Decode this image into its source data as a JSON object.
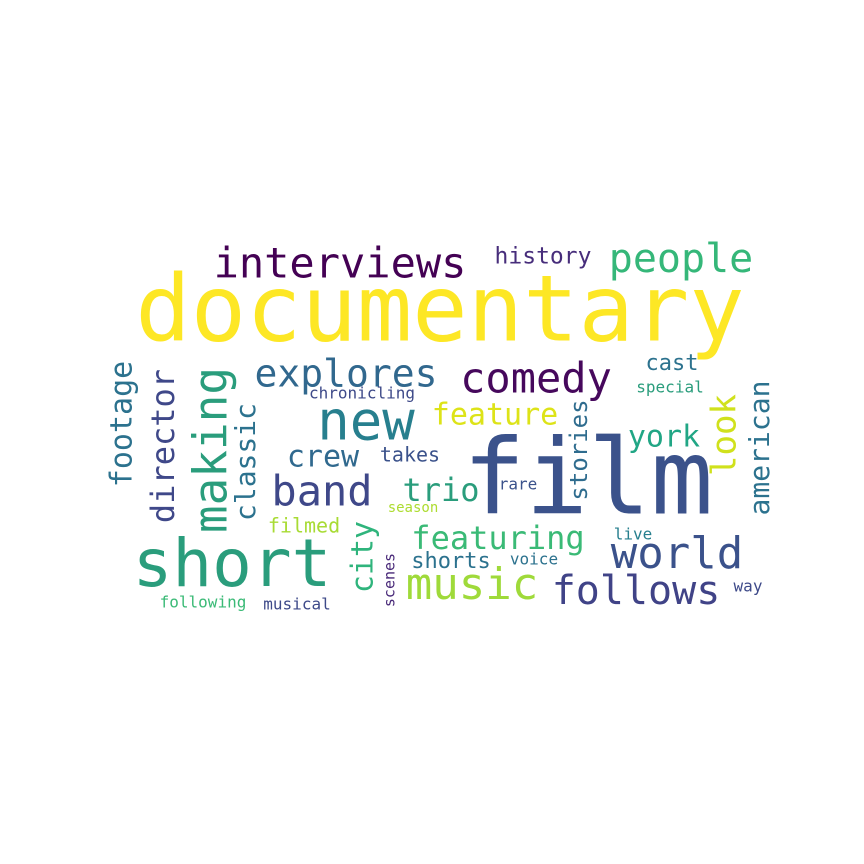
{
  "words": [
    {
      "text": "documentary",
      "color": "#fde725"
    },
    {
      "text": "film",
      "color": "#3b528b"
    },
    {
      "text": "short",
      "color": "#2a9d7c"
    },
    {
      "text": "interviews",
      "color": "#440154"
    },
    {
      "text": "new",
      "color": "#277f8e"
    },
    {
      "text": "comedy",
      "color": "#46085c"
    },
    {
      "text": "people",
      "color": "#35b779"
    },
    {
      "text": "world",
      "color": "#3b528b"
    },
    {
      "text": "music",
      "color": "#9fda3a"
    },
    {
      "text": "follows",
      "color": "#404387"
    },
    {
      "text": "making",
      "color": "#2a9d7c"
    },
    {
      "text": "band",
      "color": "#3f4889"
    },
    {
      "text": "explores",
      "color": "#31688e"
    },
    {
      "text": "history",
      "color": "#472d7b"
    },
    {
      "text": "director",
      "color": "#3f4889"
    },
    {
      "text": "classic",
      "color": "#2c728e"
    },
    {
      "text": "feature",
      "color": "#dde318"
    },
    {
      "text": "featuring",
      "color": "#3aba76"
    },
    {
      "text": "look",
      "color": "#d0e11c"
    },
    {
      "text": "american",
      "color": "#2c728e"
    },
    {
      "text": "york",
      "color": "#21a685"
    },
    {
      "text": "footage",
      "color": "#2c728e"
    },
    {
      "text": "crew",
      "color": "#30698e"
    },
    {
      "text": "trio",
      "color": "#2a9d7c"
    },
    {
      "text": "city",
      "color": "#2fb47c"
    },
    {
      "text": "stories",
      "color": "#2f6c8e"
    },
    {
      "text": "cast",
      "color": "#2c728e"
    },
    {
      "text": "shorts",
      "color": "#2c728e"
    },
    {
      "text": "takes",
      "color": "#3b528b"
    },
    {
      "text": "filmed",
      "color": "#a8db34"
    },
    {
      "text": "chronicling",
      "color": "#3e4a89"
    },
    {
      "text": "special",
      "color": "#2a9d7c"
    },
    {
      "text": "rare",
      "color": "#3b528b"
    },
    {
      "text": "season",
      "color": "#addc30"
    },
    {
      "text": "live",
      "color": "#277f8e"
    },
    {
      "text": "voice",
      "color": "#2c728e"
    },
    {
      "text": "scenes",
      "color": "#482878"
    },
    {
      "text": "way",
      "color": "#3e4a89"
    },
    {
      "text": "following",
      "color": "#3aba76"
    },
    {
      "text": "musical",
      "color": "#3e4a89"
    }
  ]
}
